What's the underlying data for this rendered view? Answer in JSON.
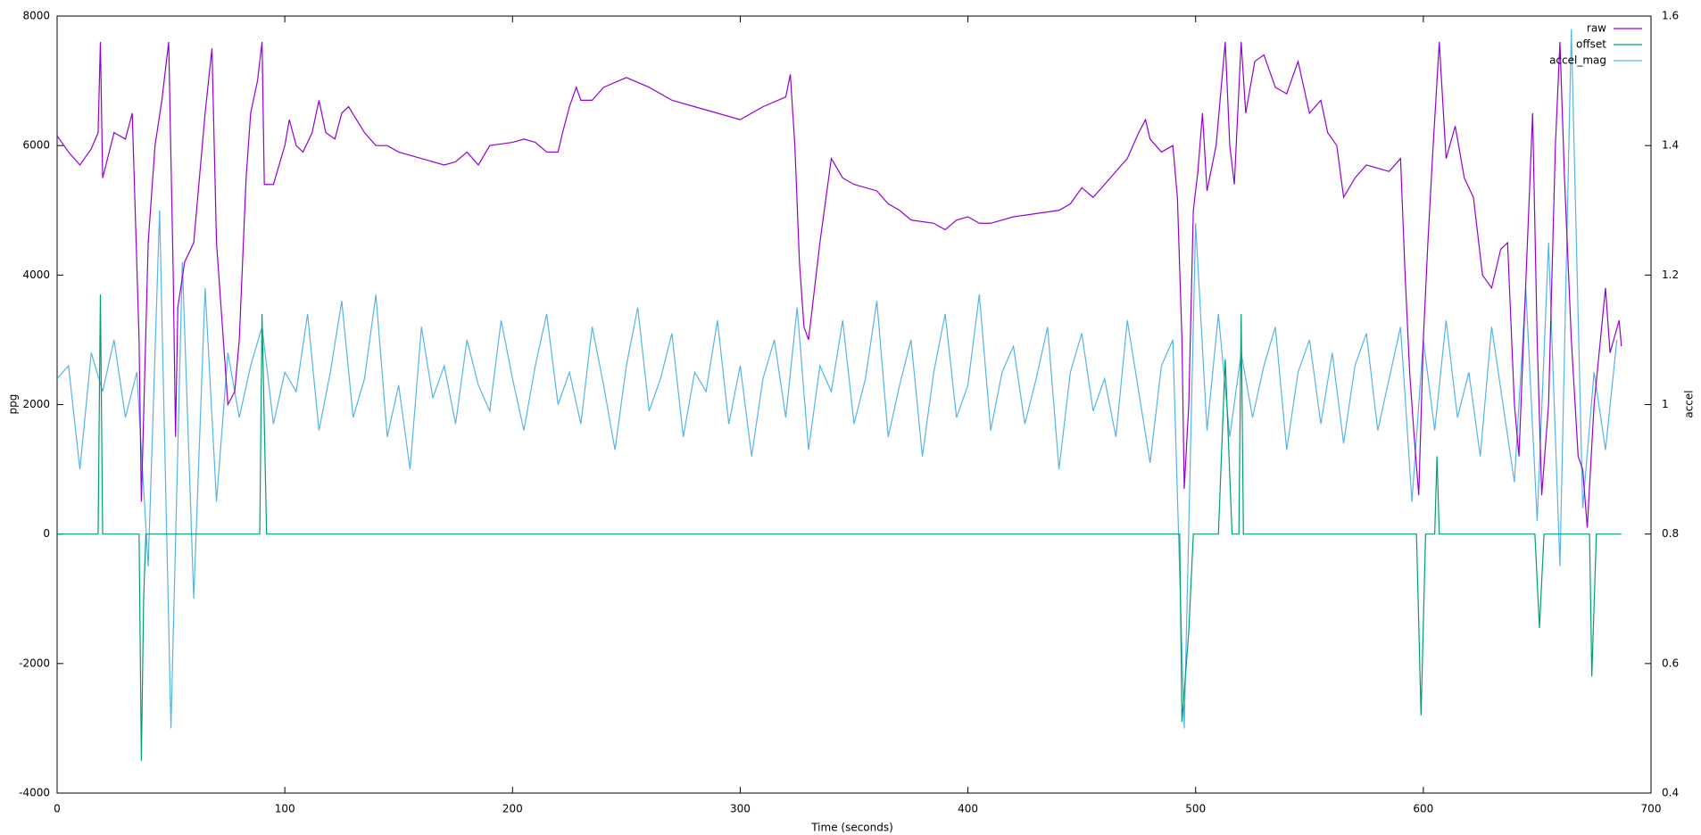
{
  "chart_data": {
    "type": "line",
    "x_label": "Time (seconds)",
    "y_label": "ppg",
    "y2_label": "accel",
    "xlim": [
      0,
      700
    ],
    "xticks": [
      0,
      100,
      200,
      300,
      400,
      500,
      600,
      700
    ],
    "ylim": [
      -4000,
      8000
    ],
    "yticks": [
      -4000,
      -2000,
      0,
      2000,
      4000,
      6000,
      8000
    ],
    "y2lim": [
      0.4,
      1.6
    ],
    "y2ticks": [
      0.4,
      0.6,
      0.8,
      1,
      1.2,
      1.4,
      1.6
    ],
    "legend": "top right",
    "series": [
      {
        "name": "raw",
        "color": "#9400d3",
        "x": [
          0,
          5,
          10,
          15,
          18,
          19,
          20,
          25,
          30,
          33,
          36,
          37,
          40,
          43,
          46,
          49,
          51,
          52,
          53,
          56,
          60,
          65,
          68,
          70,
          75,
          78,
          80,
          83,
          85,
          88,
          90,
          91,
          95,
          100,
          102,
          105,
          108,
          112,
          115,
          118,
          122,
          125,
          128,
          135,
          140,
          145,
          150,
          160,
          170,
          175,
          180,
          185,
          190,
          200,
          205,
          210,
          215,
          220,
          222,
          225,
          228,
          230,
          235,
          240,
          250,
          260,
          270,
          280,
          290,
          300,
          310,
          320,
          322,
          324,
          326,
          328,
          330,
          335,
          340,
          345,
          350,
          360,
          365,
          370,
          375,
          385,
          390,
          395,
          400,
          405,
          410,
          420,
          430,
          440,
          445,
          450,
          455,
          460,
          470,
          475,
          478,
          480,
          485,
          490,
          492,
          494,
          495,
          497,
          499,
          501,
          503,
          505,
          509,
          513,
          515,
          517,
          520,
          522,
          526,
          530,
          535,
          540,
          545,
          550,
          555,
          558,
          562,
          565,
          570,
          575,
          585,
          590,
          592,
          594,
          596,
          598,
          600,
          602,
          604,
          607,
          610,
          614,
          618,
          622,
          626,
          630,
          634,
          637,
          640,
          642,
          644,
          648,
          650,
          652,
          655,
          658,
          660,
          662,
          665,
          668,
          670,
          672,
          675,
          680,
          682,
          686,
          687
        ],
        "values": [
          6150,
          5900,
          5700,
          5950,
          6200,
          7600,
          5500,
          6200,
          6100,
          6500,
          3000,
          500,
          4500,
          6000,
          6700,
          7600,
          4000,
          1500,
          3500,
          4200,
          4500,
          6500,
          7500,
          4500,
          2000,
          2200,
          3000,
          5500,
          6500,
          7000,
          7600,
          5400,
          5400,
          6000,
          6400,
          6000,
          5900,
          6200,
          6700,
          6200,
          6100,
          6500,
          6600,
          6200,
          6000,
          6000,
          5900,
          5800,
          5700,
          5750,
          5900,
          5700,
          6000,
          6050,
          6100,
          6050,
          5900,
          5900,
          6200,
          6600,
          6900,
          6700,
          6700,
          6900,
          7050,
          6900,
          6700,
          6600,
          6500,
          6400,
          6600,
          6750,
          7100,
          6000,
          4200,
          3200,
          3000,
          4500,
          5800,
          5500,
          5400,
          5300,
          5100,
          5000,
          4850,
          4800,
          4700,
          4850,
          4900,
          4800,
          4800,
          4900,
          4950,
          5000,
          5100,
          5350,
          5200,
          5400,
          5800,
          6200,
          6400,
          6100,
          5900,
          6000,
          5200,
          3000,
          700,
          2000,
          5000,
          5600,
          6500,
          5300,
          6000,
          7600,
          6000,
          5400,
          7600,
          6500,
          7300,
          7400,
          6900,
          6800,
          7300,
          6500,
          6700,
          6200,
          6000,
          5200,
          5500,
          5700,
          5600,
          5800,
          4000,
          2500,
          1500,
          600,
          3000,
          4500,
          5800,
          7600,
          5800,
          6300,
          5500,
          5200,
          4000,
          3800,
          4400,
          4500,
          2000,
          1200,
          3000,
          6500,
          3000,
          600,
          2000,
          6000,
          7600,
          5500,
          3000,
          1200,
          1000,
          100,
          2000,
          3800,
          2800,
          3300,
          2900
        ]
      },
      {
        "name": "offset",
        "color": "#009e73",
        "x": [
          0,
          18,
          19,
          20,
          36,
          37,
          38,
          39,
          89,
          90,
          92,
          493,
          494,
          497,
          499,
          510,
          513,
          516,
          519,
          520,
          521,
          597,
          599,
          601,
          605,
          606,
          607,
          648,
          649,
          651,
          653,
          673,
          674,
          676,
          687
        ],
        "values": [
          0,
          0,
          3700,
          0,
          0,
          -3500,
          -1000,
          0,
          0,
          3400,
          0,
          0,
          -2900,
          -1500,
          0,
          0,
          2700,
          0,
          0,
          3400,
          0,
          0,
          -2800,
          0,
          0,
          1200,
          0,
          0,
          0,
          -1450,
          0,
          0,
          -2200,
          0,
          0
        ]
      },
      {
        "name": "accel_mag",
        "color": "#56b4e9",
        "axis": "y2",
        "x": [
          0,
          5,
          10,
          15,
          20,
          25,
          30,
          35,
          40,
          45,
          50,
          55,
          60,
          65,
          70,
          75,
          80,
          85,
          90,
          95,
          100,
          105,
          110,
          115,
          120,
          125,
          130,
          135,
          140,
          145,
          150,
          155,
          160,
          165,
          170,
          175,
          180,
          185,
          190,
          195,
          200,
          205,
          210,
          215,
          220,
          225,
          230,
          235,
          240,
          245,
          250,
          255,
          260,
          265,
          270,
          275,
          280,
          285,
          290,
          295,
          300,
          305,
          310,
          315,
          320,
          325,
          330,
          335,
          340,
          345,
          350,
          355,
          360,
          365,
          370,
          375,
          380,
          385,
          390,
          395,
          400,
          405,
          410,
          415,
          420,
          425,
          430,
          435,
          440,
          445,
          450,
          455,
          460,
          465,
          470,
          475,
          480,
          485,
          490,
          495,
          500,
          505,
          510,
          515,
          520,
          525,
          530,
          535,
          540,
          545,
          550,
          555,
          560,
          565,
          570,
          575,
          580,
          585,
          590,
          595,
          600,
          605,
          610,
          615,
          620,
          625,
          630,
          635,
          640,
          645,
          650,
          655,
          660,
          665,
          670,
          675,
          680,
          685
        ],
        "values": [
          1.04,
          1.06,
          0.9,
          1.08,
          1.02,
          1.1,
          0.98,
          1.05,
          0.75,
          1.3,
          0.5,
          1.22,
          0.7,
          1.18,
          0.85,
          1.08,
          0.98,
          1.06,
          1.12,
          0.97,
          1.05,
          1.02,
          1.14,
          0.96,
          1.05,
          1.16,
          0.98,
          1.04,
          1.17,
          0.95,
          1.03,
          0.9,
          1.12,
          1.01,
          1.06,
          0.97,
          1.1,
          1.03,
          0.99,
          1.13,
          1.04,
          0.96,
          1.06,
          1.14,
          1.0,
          1.05,
          0.97,
          1.12,
          1.03,
          0.93,
          1.06,
          1.15,
          0.99,
          1.04,
          1.11,
          0.95,
          1.05,
          1.02,
          1.13,
          0.97,
          1.06,
          0.92,
          1.04,
          1.1,
          0.98,
          1.15,
          0.93,
          1.06,
          1.02,
          1.13,
          0.97,
          1.04,
          1.16,
          0.95,
          1.03,
          1.1,
          0.92,
          1.05,
          1.14,
          0.98,
          1.03,
          1.17,
          0.96,
          1.05,
          1.09,
          0.97,
          1.04,
          1.12,
          0.9,
          1.05,
          1.11,
          0.99,
          1.04,
          0.95,
          1.13,
          1.02,
          0.91,
          1.06,
          1.1,
          0.5,
          1.28,
          0.96,
          1.14,
          0.95,
          1.08,
          0.98,
          1.06,
          1.12,
          0.93,
          1.05,
          1.1,
          0.97,
          1.08,
          0.94,
          1.06,
          1.11,
          0.96,
          1.04,
          1.12,
          0.85,
          1.1,
          0.96,
          1.13,
          0.98,
          1.05,
          0.92,
          1.12,
          1.0,
          0.88,
          1.18,
          0.82,
          1.25,
          0.75,
          1.58,
          0.84,
          1.05,
          0.93,
          1.1
        ]
      }
    ]
  }
}
